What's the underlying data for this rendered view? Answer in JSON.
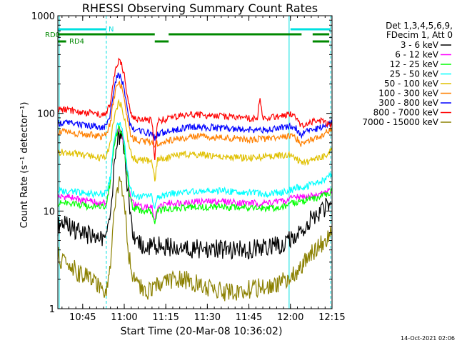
{
  "chart_data": {
    "type": "line",
    "title": "RHESSI Observing Summary Count Rates",
    "xlabel": "Start Time (20-Mar-08 10:36:02)",
    "ylabel": "Count Rate (s⁻¹ detector⁻¹)",
    "yscale": "log",
    "ylim": [
      1,
      1000
    ],
    "xlim_minutes": [
      0,
      99
    ],
    "x_ticks": [
      {
        "min": 8.97,
        "label": "10:45"
      },
      {
        "min": 23.97,
        "label": "11:00"
      },
      {
        "min": 38.97,
        "label": "11:15"
      },
      {
        "min": 53.97,
        "label": "11:30"
      },
      {
        "min": 68.97,
        "label": "11:45"
      },
      {
        "min": 83.97,
        "label": "12:00"
      },
      {
        "min": 98.97,
        "label": "12:15"
      }
    ],
    "y_ticks": [
      {
        "value": 1,
        "label": "1"
      },
      {
        "value": 10,
        "label": "10"
      },
      {
        "value": 100,
        "label": "100"
      },
      {
        "value": 1000,
        "label": "1000"
      }
    ],
    "legend_header": [
      "Det 1,3,4,5,6,9,",
      "FDecim 1, Att 0"
    ],
    "flags": [
      {
        "label": "N",
        "color": "#00e0e0",
        "segments": [
          [
            0,
            17.5
          ],
          [
            84,
            98.5
          ]
        ]
      },
      {
        "label": "RD0",
        "color": "#008800",
        "segments": [
          [
            0,
            35
          ],
          [
            40,
            88
          ],
          [
            92,
            98
          ]
        ]
      },
      {
        "label": "RD4",
        "color": "#008800",
        "segments": [
          [
            0,
            3
          ],
          [
            35,
            40
          ],
          [
            92,
            98
          ]
        ]
      }
    ],
    "saa_lines_min": [
      0.5,
      17.5,
      83.5,
      98.5
    ],
    "series": [
      {
        "name": "3 - 6 keV",
        "color": "#000000",
        "x": [
          0,
          2,
          4,
          6,
          8,
          10,
          12,
          14,
          16,
          17.5,
          19,
          20,
          21,
          22,
          23,
          24,
          25,
          26,
          27,
          28,
          30,
          32,
          34,
          35,
          36,
          40,
          45,
          50,
          55,
          60,
          65,
          70,
          75,
          80,
          83,
          85,
          87,
          89,
          91,
          93,
          95,
          97,
          99
        ],
        "y": [
          7,
          8,
          7,
          6.5,
          6,
          5.8,
          5.5,
          5.3,
          5.2,
          5.5,
          9,
          20,
          40,
          60,
          55,
          40,
          20,
          10,
          6,
          5,
          4.5,
          4.3,
          4.2,
          4.5,
          4.4,
          4.3,
          4.2,
          4.1,
          4.1,
          4.0,
          4.0,
          4.1,
          4.2,
          4.5,
          5,
          5,
          6,
          7,
          8,
          9,
          10,
          11,
          12
        ]
      },
      {
        "name": "6 - 12 keV",
        "color": "#ff00ff",
        "x": [
          0,
          4,
          8,
          12,
          16,
          17.5,
          19,
          20,
          21,
          22,
          23,
          24,
          25,
          26,
          27,
          28,
          30,
          34,
          35,
          36,
          40,
          50,
          60,
          70,
          75,
          80,
          83,
          85,
          90,
          95,
          99
        ],
        "y": [
          14,
          14,
          13,
          12.5,
          12,
          12.5,
          20,
          40,
          60,
          70,
          65,
          45,
          25,
          15,
          12,
          11.5,
          11,
          11,
          8,
          11,
          12,
          12.5,
          12.5,
          12,
          12,
          12.5,
          13,
          14,
          14,
          15,
          16
        ]
      },
      {
        "name": "12 - 25 keV",
        "color": "#00ff00",
        "x": [
          0,
          4,
          8,
          12,
          16,
          17.5,
          19,
          20,
          21,
          22,
          23,
          24,
          25,
          26,
          27,
          28,
          30,
          34,
          35,
          36,
          40,
          50,
          60,
          70,
          75,
          80,
          83,
          85,
          90,
          95,
          99
        ],
        "y": [
          12,
          12,
          11.5,
          11,
          11,
          11.5,
          20,
          40,
          60,
          70,
          65,
          45,
          25,
          14,
          11,
          10.5,
          10,
          10,
          7,
          10,
          10.5,
          11,
          11,
          11,
          10.5,
          11,
          11.5,
          12,
          13,
          14,
          16
        ]
      },
      {
        "name": "25 - 50 keV",
        "color": "#00ffff",
        "x": [
          0,
          4,
          8,
          12,
          16,
          17.5,
          19,
          20,
          21,
          22,
          23,
          24,
          25,
          26,
          27,
          28,
          30,
          34,
          35,
          36,
          40,
          50,
          60,
          70,
          75,
          80,
          83,
          85,
          90,
          95,
          99
        ],
        "y": [
          16,
          16,
          15.5,
          15,
          15,
          15.5,
          22,
          45,
          70,
          80,
          75,
          50,
          28,
          18,
          15,
          14.5,
          14,
          14,
          11,
          14,
          15,
          16,
          16,
          15.5,
          15,
          15.5,
          16,
          17,
          18,
          20,
          24
        ]
      },
      {
        "name": "50 - 100 keV",
        "color": "#e0c000",
        "x": [
          0,
          4,
          8,
          12,
          16,
          17.5,
          19,
          20,
          21,
          22,
          23,
          24,
          25,
          26,
          27,
          28,
          30,
          34,
          35,
          36,
          40,
          45,
          50,
          55,
          60,
          65,
          70,
          75,
          80,
          83,
          85,
          88,
          90,
          95,
          99
        ],
        "y": [
          40,
          40,
          38,
          36,
          35,
          36,
          50,
          80,
          110,
          130,
          120,
          90,
          60,
          42,
          36,
          34,
          33,
          32,
          20,
          34,
          35,
          38,
          38,
          37,
          36,
          35,
          35,
          36,
          37,
          38,
          38,
          30,
          32,
          35,
          42
        ]
      },
      {
        "name": "100 - 300 keV",
        "color": "#ff8000",
        "x": [
          0,
          4,
          8,
          12,
          16,
          17.5,
          19,
          20,
          21,
          22,
          23,
          24,
          25,
          26,
          27,
          28,
          30,
          34,
          35,
          36,
          40,
          45,
          50,
          55,
          60,
          65,
          70,
          75,
          80,
          83,
          85,
          88,
          90,
          95,
          99
        ],
        "y": [
          65,
          64,
          62,
          60,
          58,
          60,
          80,
          130,
          180,
          210,
          190,
          140,
          90,
          65,
          56,
          54,
          52,
          50,
          45,
          50,
          52,
          56,
          58,
          57,
          56,
          55,
          54,
          55,
          57,
          58,
          60,
          48,
          52,
          58,
          70
        ]
      },
      {
        "name": "300 - 800 keV",
        "color": "#0000ff",
        "x": [
          0,
          4,
          8,
          12,
          16,
          17.5,
          19,
          20,
          21,
          22,
          23,
          24,
          25,
          26,
          27,
          28,
          30,
          34,
          35,
          36,
          40,
          45,
          50,
          55,
          60,
          65,
          70,
          75,
          80,
          83,
          85,
          88,
          90,
          95,
          99
        ],
        "y": [
          80,
          80,
          77,
          75,
          72,
          74,
          100,
          160,
          220,
          250,
          230,
          170,
          110,
          80,
          70,
          67,
          65,
          62,
          55,
          62,
          65,
          70,
          73,
          72,
          70,
          68,
          67,
          68,
          70,
          73,
          75,
          60,
          65,
          72,
          80
        ]
      },
      {
        "name": "800 - 7000 keV",
        "color": "#ff0000",
        "x": [
          0,
          4,
          8,
          12,
          16,
          17.5,
          19,
          20,
          21,
          22,
          23,
          24,
          25,
          26,
          27,
          28,
          30,
          34,
          35,
          36,
          40,
          45,
          50,
          55,
          60,
          65,
          70,
          72,
          73,
          74,
          75,
          80,
          83,
          85,
          88,
          90,
          95,
          99
        ],
        "y": [
          110,
          108,
          104,
          100,
          96,
          98,
          130,
          210,
          300,
          350,
          320,
          240,
          150,
          110,
          94,
          90,
          87,
          84,
          33,
          84,
          88,
          95,
          97,
          95,
          92,
          89,
          88,
          90,
          150,
          90,
          90,
          92,
          96,
          98,
          75,
          80,
          85,
          75
        ]
      },
      {
        "name": "7000 - 15000 keV",
        "color": "#8b8000",
        "x": [
          0,
          2,
          4,
          6,
          8,
          10,
          12,
          14,
          16,
          17.5,
          19,
          20,
          21,
          22,
          23,
          24,
          25,
          26,
          27,
          28,
          30,
          34,
          35,
          36,
          40,
          45,
          50,
          55,
          60,
          65,
          70,
          75,
          80,
          83,
          85,
          87,
          89,
          91,
          93,
          95,
          97,
          99
        ],
        "y": [
          3.5,
          3,
          2.8,
          2.5,
          2.3,
          2.2,
          2,
          1.8,
          1.6,
          1.5,
          3,
          8,
          15,
          20,
          18,
          12,
          6,
          3,
          2,
          1.8,
          1.6,
          1.5,
          1.5,
          1.8,
          2,
          2,
          1.8,
          1.6,
          1.5,
          1.5,
          1.6,
          1.7,
          1.8,
          2,
          2.2,
          2.5,
          3,
          3.5,
          4,
          4.5,
          5,
          6
        ]
      }
    ]
  },
  "footer_date": "14-Oct-2021 02:06"
}
